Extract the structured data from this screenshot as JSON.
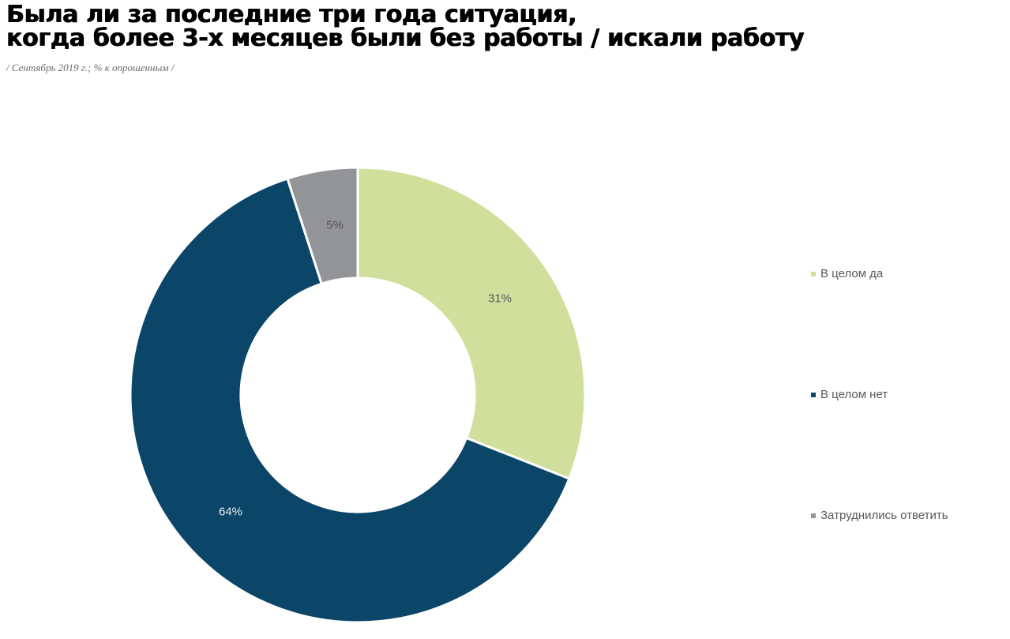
{
  "header": {
    "title_line1": "Была ли за последние три года ситуация,",
    "title_line2": "когда более 3-х месяцев были без работы / искали работу",
    "subtitle": "/ Сентябрь 2019 г.; % к опрошенным /"
  },
  "chart_data": {
    "type": "pie",
    "subtype": "donut",
    "title": "Была ли за последние три года ситуация, когда более 3-х месяцев были без работы / искали работу",
    "subtitle": "/ Сентябрь 2019 г.; % к опрошенным /",
    "categories": [
      "В целом да",
      "В целом нет",
      "Затруднились ответить"
    ],
    "values": [
      31,
      64,
      5
    ],
    "value_labels": [
      "31%",
      "64%",
      "5%"
    ],
    "colors": [
      "#d0e09c",
      "#0b4669",
      "#929497"
    ],
    "label_colors": [
      "#555555",
      "#e8eef2",
      "#555555"
    ],
    "start_angle_deg": 0,
    "direction": "clockwise",
    "legend_position": "right",
    "unit": "%"
  },
  "legend": {
    "items": [
      {
        "label": "В целом да",
        "color": "#d0e09c"
      },
      {
        "label": "В целом нет",
        "color": "#0b4669"
      },
      {
        "label": "Затруднились ответить",
        "color": "#929497"
      }
    ]
  }
}
